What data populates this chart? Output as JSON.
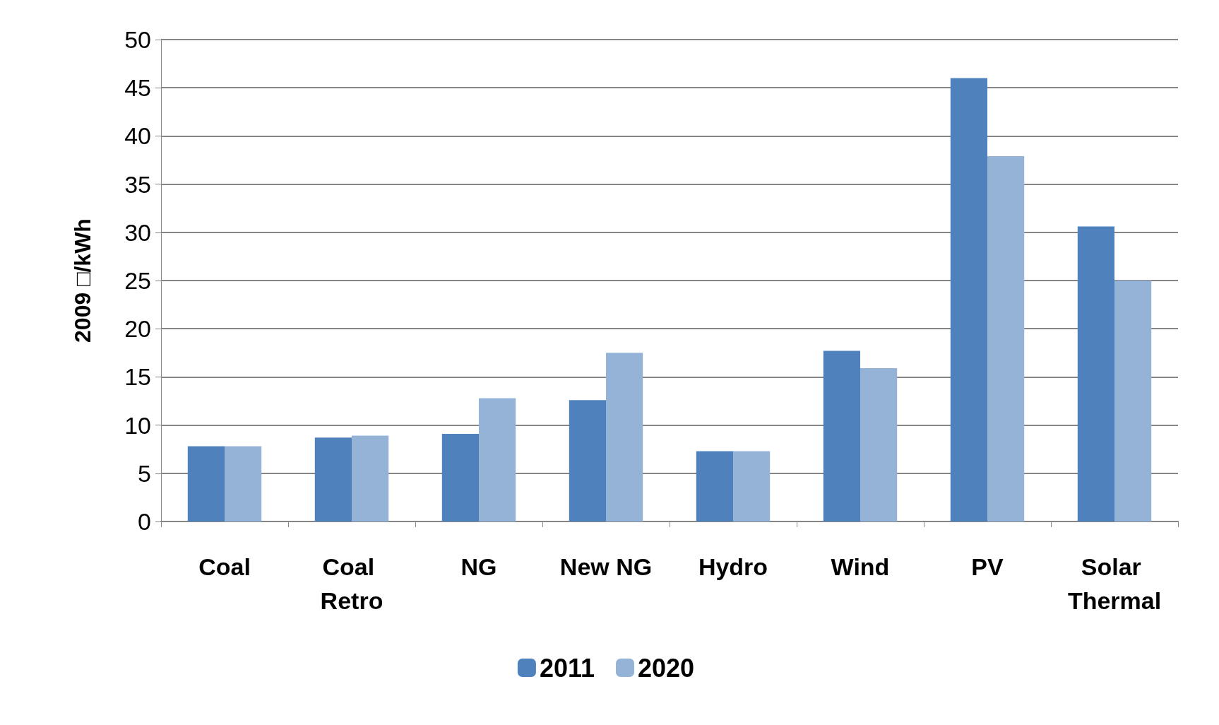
{
  "chart_data": {
    "type": "bar",
    "ylabel": "2009 □/kWh",
    "categories": [
      "Coal",
      "Coal Retro",
      "NG",
      "New NG",
      "Hydro",
      "Wind",
      "PV",
      "Solar Thermal"
    ],
    "series": [
      {
        "name": "2011",
        "color": "#4f81bd",
        "values": [
          7.8,
          8.7,
          9.1,
          12.6,
          7.3,
          17.7,
          46.0,
          30.6
        ]
      },
      {
        "name": "2020",
        "color": "#95b3d7",
        "values": [
          7.8,
          8.9,
          12.8,
          17.5,
          7.3,
          15.9,
          37.9,
          25.0
        ]
      }
    ],
    "ylim": [
      0,
      50
    ],
    "yticks": [
      0,
      5,
      10,
      15,
      20,
      25,
      30,
      35,
      40,
      45,
      50
    ],
    "grid": "y",
    "legend": "bottom"
  }
}
